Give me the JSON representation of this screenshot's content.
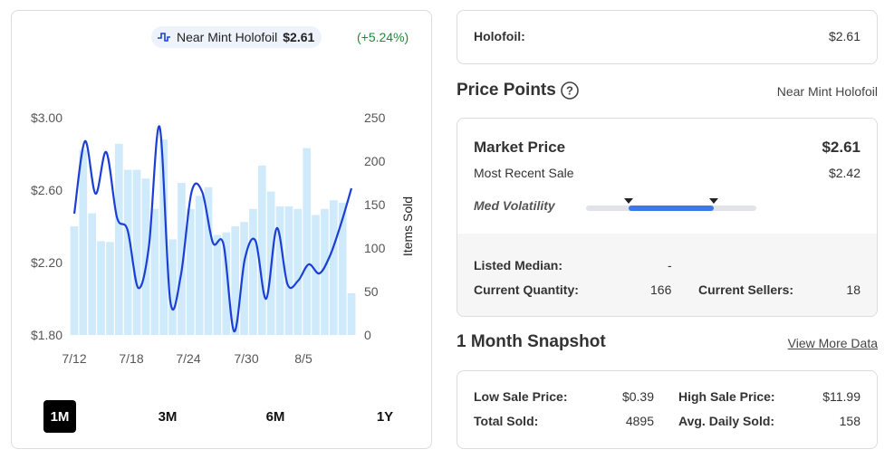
{
  "legend": {
    "icon": "pulse-icon",
    "condition": "Near Mint Holofoil",
    "price": "$2.61",
    "change": "(+5.24%)"
  },
  "colors": {
    "bar": "#cfeafb",
    "line": "#1b3fd6",
    "accent": "#3b7ae6",
    "positive": "#1f8a3b"
  },
  "chart_data": {
    "type": "bar+line",
    "y_left": {
      "ticks": [
        "$3.00",
        "$2.60",
        "$2.20",
        "$1.80"
      ],
      "min": 1.8,
      "max": 3.0
    },
    "y_right": {
      "label": "Items Sold",
      "ticks": [
        "250",
        "200",
        "150",
        "100",
        "50",
        "0"
      ],
      "min": 0,
      "max": 250
    },
    "x_ticks": [
      "7/12",
      "7/18",
      "7/24",
      "7/30",
      "8/5"
    ],
    "bars": [
      125,
      213,
      140,
      108,
      107,
      220,
      190,
      190,
      180,
      145,
      225,
      110,
      175,
      145,
      160,
      170,
      115,
      118,
      125,
      130,
      145,
      195,
      165,
      148,
      148,
      145,
      215,
      138,
      145,
      155,
      152,
      48
    ],
    "price": [
      2.47,
      2.87,
      2.58,
      2.81,
      2.45,
      2.38,
      2.06,
      2.29,
      2.95,
      1.99,
      2.13,
      2.59,
      2.59,
      2.31,
      2.3,
      1.82,
      2.22,
      2.32,
      2.0,
      2.39,
      2.08,
      2.1,
      2.19,
      2.14,
      2.24,
      2.41,
      2.61
    ]
  },
  "ranges": [
    "1M",
    "3M",
    "6M",
    "1Y"
  ],
  "holofoil": {
    "label": "Holofoil:",
    "value": "$2.61"
  },
  "price_points": {
    "title": "Price Points",
    "condition": "Near Mint Holofoil",
    "market_label": "Market Price",
    "market_value": "$2.61",
    "recent_label": "Most Recent Sale",
    "recent_value": "$2.42",
    "volatility_label": "Med Volatility",
    "volatility_low": 0.25,
    "volatility_high": 0.75,
    "listed_median_label": "Listed Median:",
    "listed_median_value": "-",
    "quantity_label": "Current Quantity:",
    "quantity_value": "166",
    "sellers_label": "Current Sellers:",
    "sellers_value": "18"
  },
  "snapshot": {
    "title": "1 Month Snapshot",
    "link": "View More Data",
    "low_label": "Low Sale Price:",
    "low_value": "$0.39",
    "high_label": "High Sale Price:",
    "high_value": "$11.99",
    "total_label": "Total Sold:",
    "total_value": "4895",
    "avg_label": "Avg. Daily Sold:",
    "avg_value": "158"
  }
}
